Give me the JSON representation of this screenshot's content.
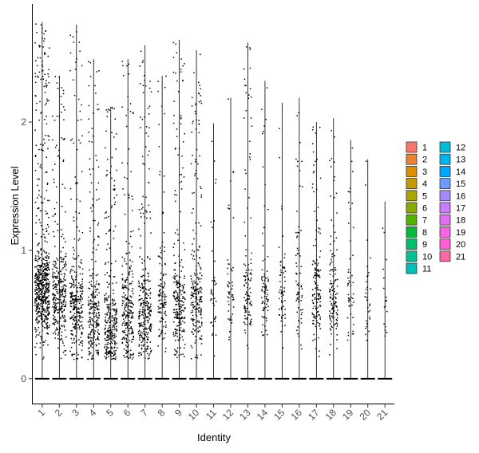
{
  "chart_data": {
    "type": "violin",
    "xlabel": "Identity",
    "ylabel": "Expression Level",
    "categories": [
      "1",
      "2",
      "3",
      "4",
      "5",
      "6",
      "7",
      "8",
      "9",
      "10",
      "11",
      "12",
      "13",
      "14",
      "15",
      "16",
      "17",
      "18",
      "19",
      "20",
      "21"
    ],
    "ylim": [
      -0.2,
      2.92
    ],
    "yticks": [
      0,
      1,
      2
    ],
    "ymax_per_cluster": [
      2.78,
      2.36,
      2.76,
      2.49,
      2.12,
      2.49,
      2.6,
      2.36,
      2.64,
      2.56,
      1.99,
      2.19,
      2.62,
      2.32,
      2.15,
      2.19,
      2.0,
      2.03,
      1.86,
      1.71,
      1.38
    ],
    "point_density": [
      620,
      330,
      300,
      250,
      290,
      250,
      300,
      120,
      260,
      230,
      40,
      50,
      120,
      80,
      60,
      70,
      140,
      130,
      50,
      30,
      18
    ],
    "median_nonzero_level": [
      0.62,
      0.55,
      0.5,
      0.4,
      0.3,
      0.45,
      0.45,
      0.55,
      0.5,
      0.55,
      0.5,
      0.6,
      0.6,
      0.6,
      0.6,
      0.6,
      0.6,
      0.55,
      0.55,
      0.55,
      0.45
    ],
    "legend": {
      "labels": [
        "1",
        "2",
        "3",
        "4",
        "5",
        "6",
        "7",
        "8",
        "9",
        "10",
        "11",
        "12",
        "13",
        "14",
        "15",
        "16",
        "17",
        "18",
        "19",
        "20",
        "21"
      ],
      "colors": [
        "#F8766D",
        "#EB8335",
        "#DA8F00",
        "#C49A00",
        "#A9A400",
        "#86AC00",
        "#53B400",
        "#00BA38",
        "#00BE6C",
        "#00C094",
        "#00BFB7",
        "#00BCD8",
        "#00B4EF",
        "#00A7FF",
        "#6F9AFF",
        "#A58AFF",
        "#C97CFF",
        "#E36EF6",
        "#F565E3",
        "#FD61D1",
        "#FF67A4"
      ]
    }
  }
}
